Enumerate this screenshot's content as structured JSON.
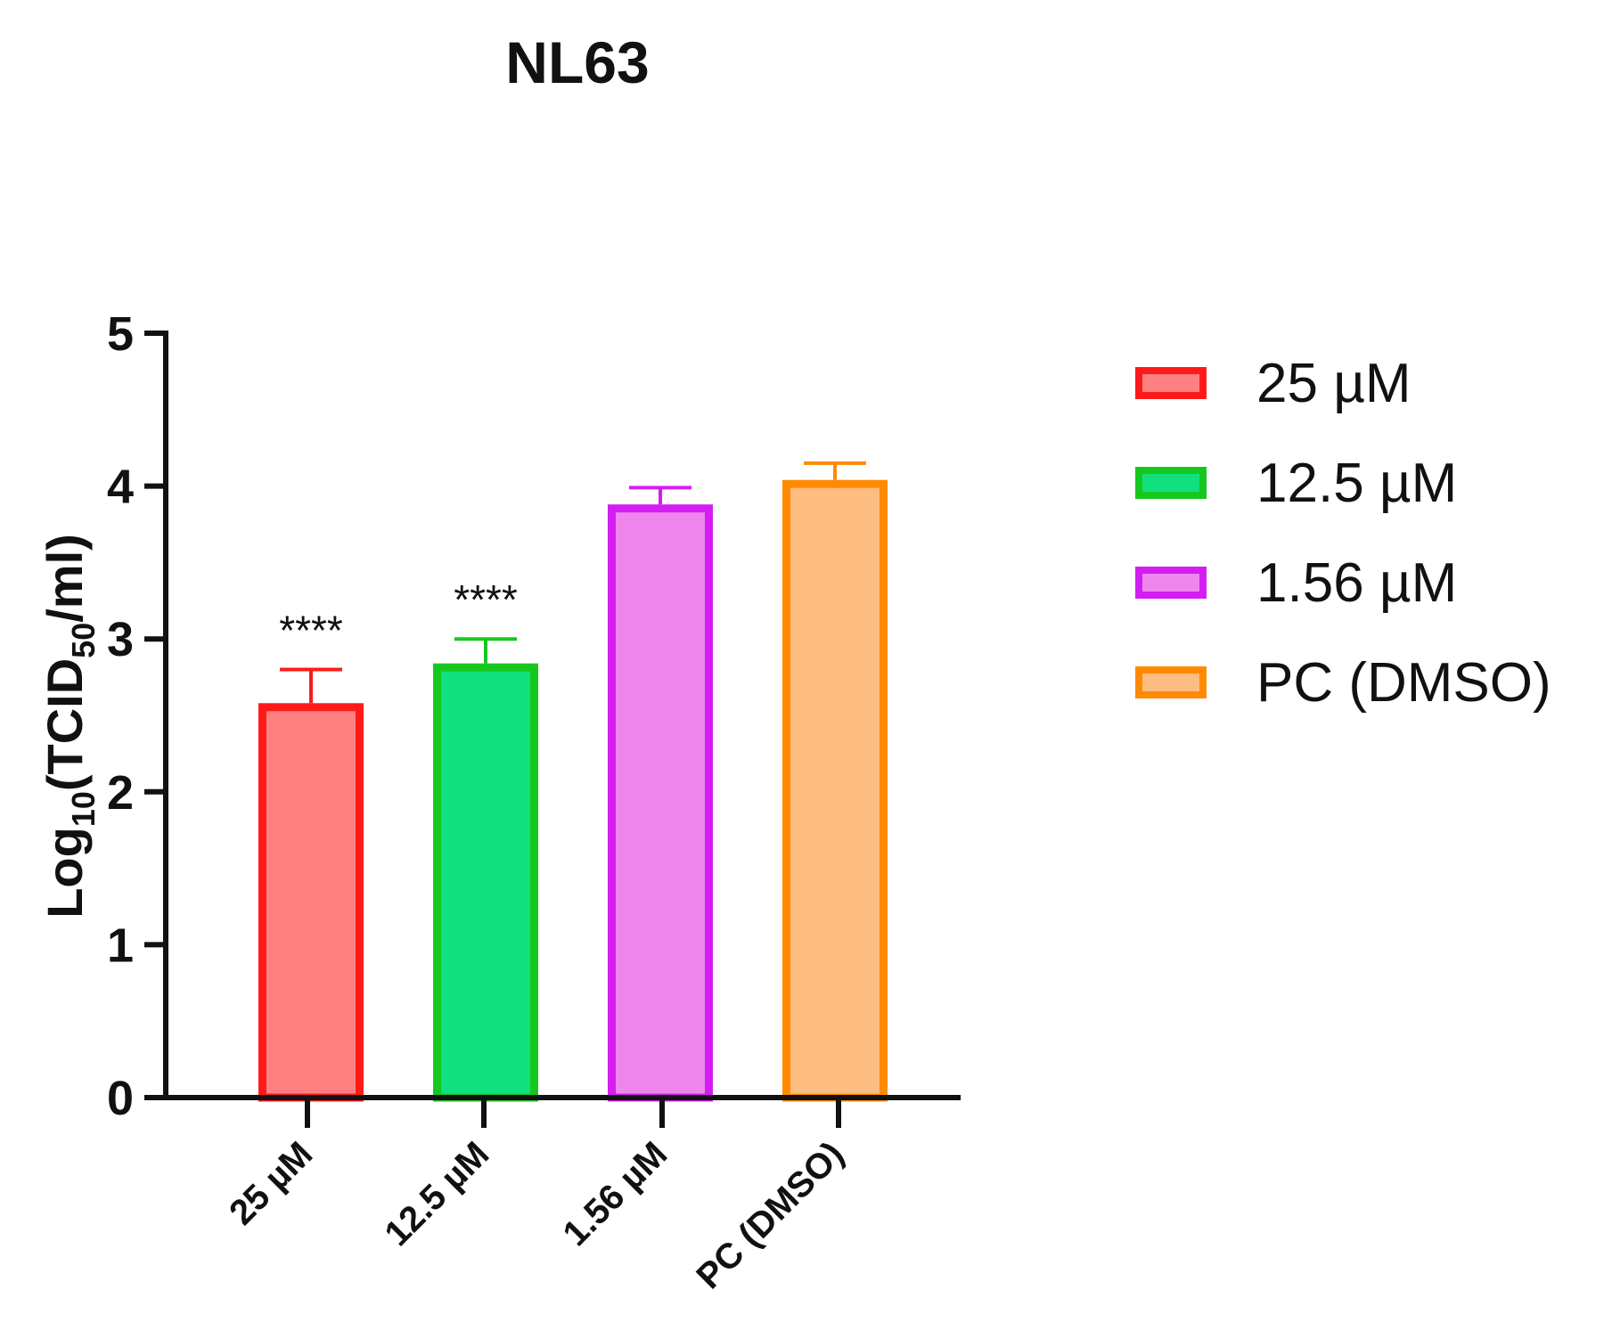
{
  "chart_data": {
    "type": "bar",
    "title": "NL63",
    "ylabel": {
      "main": "Log",
      "sub1": "10",
      "mid": "(TCID",
      "sub2": "50",
      "tail": "/ml)"
    },
    "xlabel": "",
    "ylim": [
      0,
      5
    ],
    "yticks": [
      "0",
      "1",
      "2",
      "3",
      "4",
      "5"
    ],
    "categories": [
      "25 µM",
      "12.5 µM",
      "1.56 µM",
      "PC (DMSO)"
    ],
    "values": [
      2.58,
      2.84,
      3.88,
      4.04
    ],
    "errors": [
      0.22,
      0.16,
      0.11,
      0.11
    ],
    "annotations": [
      "****",
      "****",
      "",
      ""
    ],
    "colors": {
      "fill": [
        "#ff8080",
        "#12e07f",
        "#ee86ee",
        "#fdbd80"
      ],
      "stroke": [
        "#ff1a1a",
        "#16c81e",
        "#d41df0",
        "#ff8a00"
      ]
    },
    "legend": {
      "position": "right",
      "entries": [
        "25 µM",
        "12.5 µM",
        "1.56 µM",
        "PC (DMSO)"
      ]
    }
  }
}
